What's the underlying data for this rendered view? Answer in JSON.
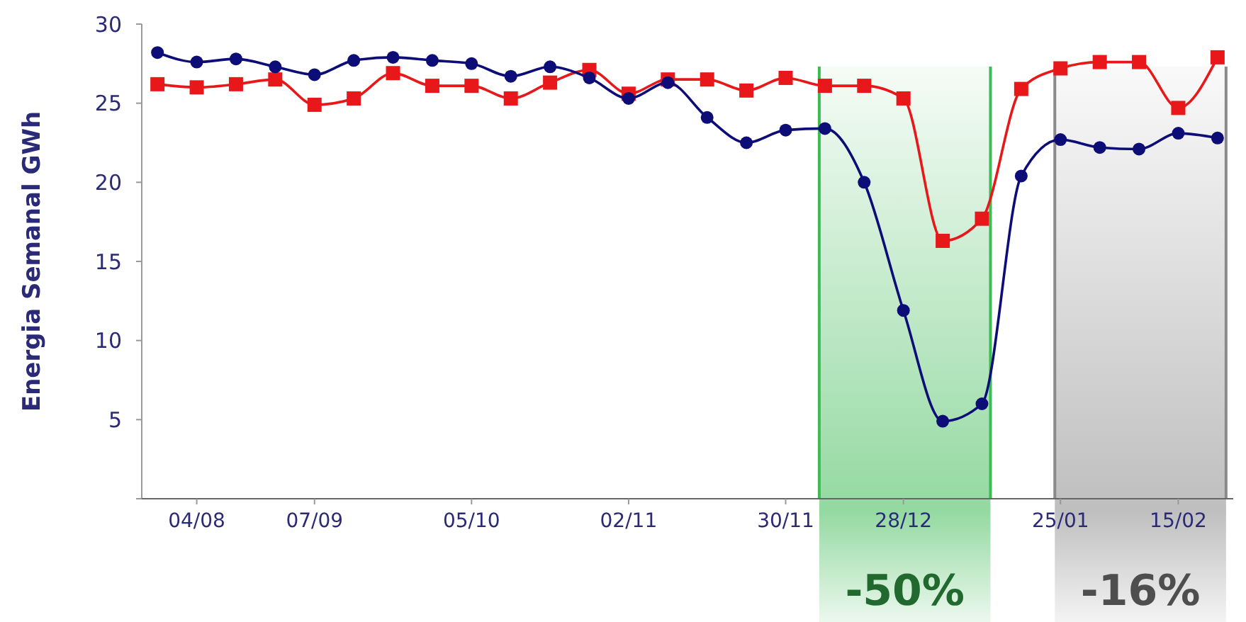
{
  "chart_data": {
    "type": "line",
    "ylabel": "Energia Semanal GWh",
    "categories": [
      null,
      "04/08",
      null,
      null,
      "07/09",
      null,
      null,
      null,
      "05/10",
      null,
      null,
      null,
      "02/11",
      null,
      null,
      null,
      "30/11",
      null,
      null,
      "28/12",
      null,
      null,
      null,
      "25/01",
      null,
      null,
      "15/02",
      null
    ],
    "series": [
      {
        "color": "#0d0d78",
        "marker": "circle",
        "values": [
          28.2,
          27.6,
          27.8,
          27.3,
          26.8,
          27.7,
          27.9,
          27.7,
          27.5,
          26.7,
          27.3,
          26.6,
          25.3,
          26.3,
          24.1,
          22.5,
          23.3,
          23.4,
          20.0,
          11.9,
          4.9,
          6.0,
          20.4,
          22.7,
          22.2,
          22.1,
          23.1,
          22.8
        ]
      },
      {
        "color": "#e8181a",
        "marker": "square",
        "values": [
          26.2,
          26.0,
          26.2,
          26.5,
          24.9,
          25.3,
          26.9,
          26.1,
          26.1,
          25.3,
          26.3,
          27.1,
          25.6,
          26.5,
          26.5,
          25.8,
          26.6,
          26.1,
          26.1,
          25.3,
          16.3,
          17.7,
          25.9,
          27.2,
          27.6,
          27.6,
          24.7,
          27.9
        ]
      }
    ],
    "ylim": [
      0,
      30
    ],
    "yticks": [
      {
        "value": 0,
        "label": null
      },
      5,
      10,
      15,
      20,
      25,
      30
    ],
    "grid": false,
    "annotations": [
      "-50%",
      "-16%"
    ]
  }
}
